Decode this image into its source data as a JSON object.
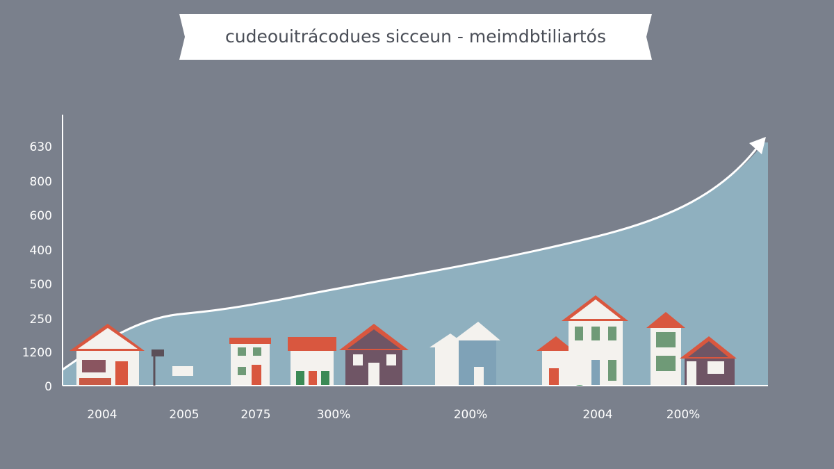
{
  "title": "cudeouitrácodues sicceun - meimdbtiliartós",
  "y_axis_labels": [
    "630",
    "800",
    "600",
    "400",
    "500",
    "250",
    "1200",
    "0"
  ],
  "x_axis_labels": [
    "2004",
    "2005",
    "2075",
    "300%",
    "200%",
    "2004",
    "200%"
  ]
}
